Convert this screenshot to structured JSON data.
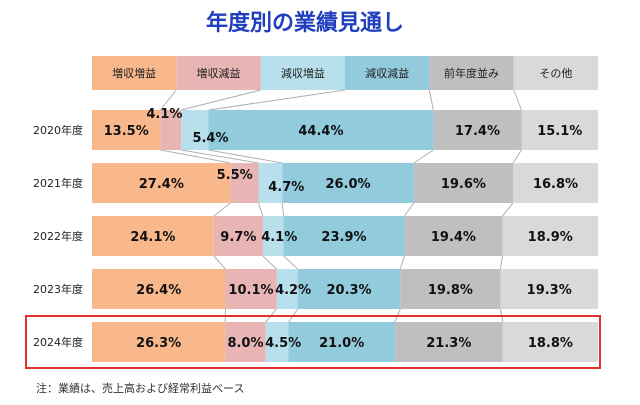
{
  "chart_data": {
    "type": "bar",
    "stacked": "100%",
    "orientation": "horizontal",
    "title": "年度別の業績見通し",
    "note": "注：業績は、売上高および経常利益ベース",
    "categories": [
      "2020年度",
      "2021年度",
      "2022年度",
      "2023年度",
      "2024年度"
    ],
    "highlighted_category": "2024年度",
    "series": [
      {
        "name": "増収増益",
        "color": "#f8b88b",
        "values": [
          13.5,
          27.4,
          24.1,
          26.4,
          26.3
        ]
      },
      {
        "name": "増収減益",
        "color": "#e8b4b4",
        "values": [
          4.1,
          5.5,
          9.7,
          10.1,
          8.0
        ]
      },
      {
        "name": "減収増益",
        "color": "#b8e0ec",
        "values": [
          5.4,
          4.7,
          4.1,
          4.2,
          4.5
        ]
      },
      {
        "name": "減収減益",
        "color": "#92cbdc",
        "values": [
          44.4,
          26.0,
          23.9,
          20.3,
          21.0
        ]
      },
      {
        "name": "前年度並み",
        "color": "#bfbfbf",
        "values": [
          17.4,
          19.6,
          19.4,
          19.8,
          21.3
        ]
      },
      {
        "name": "その他",
        "color": "#d9d9d9",
        "values": [
          15.1,
          16.8,
          18.9,
          19.3,
          18.8
        ]
      }
    ],
    "value_labels": [
      [
        "13.5%",
        "4.1%",
        "5.4%",
        "44.4%",
        "17.4%",
        "15.1%"
      ],
      [
        "27.4%",
        "5.5%",
        "4.7%",
        "26.0%",
        "19.6%",
        "16.8%"
      ],
      [
        "24.1%",
        "9.7%",
        "4.1%",
        "23.9%",
        "19.4%",
        "18.9%"
      ],
      [
        "26.4%",
        "10.1%",
        "4.2%",
        "20.3%",
        "19.8%",
        "19.3%"
      ],
      [
        "26.3%",
        "8.0%",
        "4.5%",
        "21.0%",
        "21.3%",
        "18.8%"
      ]
    ],
    "title_color": "#1f3fbf",
    "highlight_color": "#e03030",
    "legend_position": "top",
    "grid": false
  }
}
